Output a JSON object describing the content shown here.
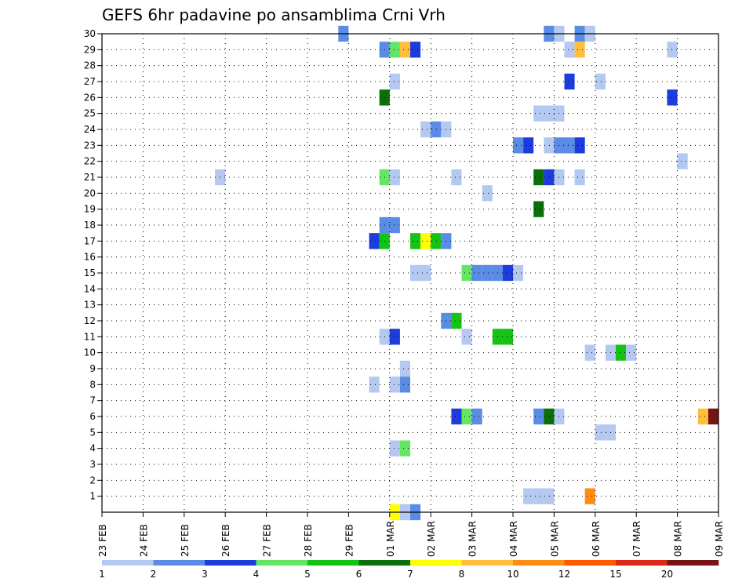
{
  "chart_data": {
    "type": "heatmap",
    "title": "GEFS 6hr padavine po ansamblima Crni Vrh",
    "xlabel": "",
    "ylabel": "",
    "x_tick_labels": [
      "23 FEB",
      "24 FEB",
      "25 FEB",
      "26 FEB",
      "27 FEB",
      "28 FEB",
      "29 FEB",
      "01 MAR",
      "02 MAR",
      "03 MAR",
      "04 MAR",
      "05 MAR",
      "06 MAR",
      "07 MAR",
      "08 MAR",
      "09 MAR"
    ],
    "y_tick_labels": [
      "1",
      "2",
      "3",
      "4",
      "5",
      "6",
      "7",
      "8",
      "9",
      "10",
      "11",
      "12",
      "13",
      "14",
      "15",
      "16",
      "17",
      "18",
      "19",
      "20",
      "21",
      "22",
      "23",
      "24",
      "25",
      "26",
      "27",
      "28",
      "29",
      "30"
    ],
    "x_range_steps": [
      0,
      60
    ],
    "y_range": [
      0,
      30
    ],
    "x_unit": "6-hour steps from 23 FEB 00Z",
    "legend": {
      "labels": [
        "1",
        "2",
        "3",
        "4",
        "5",
        "6",
        "7",
        "8",
        "10",
        "12",
        "15",
        "20"
      ],
      "colors": [
        "#b4c8f0",
        "#5a8ce6",
        "#1e3cdc",
        "#64e664",
        "#14c314",
        "#0a6e0a",
        "#ffff00",
        "#ffbe3c",
        "#ff8c14",
        "#ff5a00",
        "#dc2814",
        "#781414"
      ]
    },
    "cells": [
      {
        "member": 30,
        "step": 23.5,
        "color": "#5a8ce6"
      },
      {
        "member": 30,
        "step": 43.5,
        "color": "#5a8ce6"
      },
      {
        "member": 30,
        "step": 44.5,
        "color": "#b4c8f0"
      },
      {
        "member": 30,
        "step": 46.5,
        "color": "#5a8ce6"
      },
      {
        "member": 30,
        "step": 47.5,
        "color": "#b4c8f0"
      },
      {
        "member": 29,
        "step": 27.5,
        "color": "#5a8ce6"
      },
      {
        "member": 29,
        "step": 28.5,
        "color": "#64e664"
      },
      {
        "member": 29,
        "step": 29.5,
        "color": "#ffbe3c"
      },
      {
        "member": 29,
        "step": 30.5,
        "color": "#1e3cdc"
      },
      {
        "member": 29,
        "step": 45.5,
        "color": "#b4c8f0"
      },
      {
        "member": 29,
        "step": 46.5,
        "color": "#ffbe3c"
      },
      {
        "member": 29,
        "step": 55.5,
        "color": "#b4c8f0"
      },
      {
        "member": 27,
        "step": 28.5,
        "color": "#b4c8f0"
      },
      {
        "member": 27,
        "step": 45.5,
        "color": "#1e3cdc"
      },
      {
        "member": 27,
        "step": 48.5,
        "color": "#b4c8f0"
      },
      {
        "member": 26,
        "step": 27.5,
        "color": "#0a6e0a"
      },
      {
        "member": 26,
        "step": 55.5,
        "color": "#1e3cdc"
      },
      {
        "member": 25,
        "step": 42.5,
        "color": "#b4c8f0"
      },
      {
        "member": 25,
        "step": 43.5,
        "color": "#b4c8f0"
      },
      {
        "member": 25,
        "step": 44.5,
        "color": "#b4c8f0"
      },
      {
        "member": 24,
        "step": 31.5,
        "color": "#b4c8f0"
      },
      {
        "member": 24,
        "step": 32.5,
        "color": "#5a8ce6"
      },
      {
        "member": 24,
        "step": 33.5,
        "color": "#b4c8f0"
      },
      {
        "member": 23,
        "step": 40.5,
        "color": "#5a8ce6"
      },
      {
        "member": 23,
        "step": 41.5,
        "color": "#1e3cdc"
      },
      {
        "member": 23,
        "step": 43.5,
        "color": "#b4c8f0"
      },
      {
        "member": 23,
        "step": 44.5,
        "color": "#5a8ce6"
      },
      {
        "member": 23,
        "step": 45.5,
        "color": "#5a8ce6"
      },
      {
        "member": 23,
        "step": 46.5,
        "color": "#1e3cdc"
      },
      {
        "member": 22,
        "step": 56.5,
        "color": "#b4c8f0"
      },
      {
        "member": 21,
        "step": 11.5,
        "color": "#b4c8f0"
      },
      {
        "member": 21,
        "step": 27.5,
        "color": "#64e664"
      },
      {
        "member": 21,
        "step": 28.5,
        "color": "#b4c8f0"
      },
      {
        "member": 21,
        "step": 34.5,
        "color": "#b4c8f0"
      },
      {
        "member": 21,
        "step": 42.5,
        "color": "#0a6e0a"
      },
      {
        "member": 21,
        "step": 43.5,
        "color": "#1e3cdc"
      },
      {
        "member": 21,
        "step": 44.5,
        "color": "#b4c8f0"
      },
      {
        "member": 21,
        "step": 46.5,
        "color": "#b4c8f0"
      },
      {
        "member": 20,
        "step": 37.5,
        "color": "#b4c8f0"
      },
      {
        "member": 19,
        "step": 42.5,
        "color": "#0a6e0a"
      },
      {
        "member": 18,
        "step": 27.5,
        "color": "#5a8ce6"
      },
      {
        "member": 18,
        "step": 28.5,
        "color": "#5a8ce6"
      },
      {
        "member": 17,
        "step": 26.5,
        "color": "#1e3cdc"
      },
      {
        "member": 17,
        "step": 27.5,
        "color": "#14c314"
      },
      {
        "member": 17,
        "step": 30.5,
        "color": "#14c314"
      },
      {
        "member": 17,
        "step": 31.5,
        "color": "#ffff00"
      },
      {
        "member": 17,
        "step": 32.5,
        "color": "#14c314"
      },
      {
        "member": 17,
        "step": 33.5,
        "color": "#5a8ce6"
      },
      {
        "member": 15,
        "step": 30.5,
        "color": "#b4c8f0"
      },
      {
        "member": 15,
        "step": 31.5,
        "color": "#b4c8f0"
      },
      {
        "member": 15,
        "step": 35.5,
        "color": "#64e664"
      },
      {
        "member": 15,
        "step": 36.5,
        "color": "#5a8ce6"
      },
      {
        "member": 15,
        "step": 37.5,
        "color": "#5a8ce6"
      },
      {
        "member": 15,
        "step": 38.5,
        "color": "#5a8ce6"
      },
      {
        "member": 15,
        "step": 39.5,
        "color": "#1e3cdc"
      },
      {
        "member": 15,
        "step": 40.5,
        "color": "#b4c8f0"
      },
      {
        "member": 12,
        "step": 33.5,
        "color": "#5a8ce6"
      },
      {
        "member": 12,
        "step": 34.5,
        "color": "#14c314"
      },
      {
        "member": 11,
        "step": 27.5,
        "color": "#b4c8f0"
      },
      {
        "member": 11,
        "step": 28.5,
        "color": "#1e3cdc"
      },
      {
        "member": 11,
        "step": 35.5,
        "color": "#b4c8f0"
      },
      {
        "member": 11,
        "step": 38.5,
        "color": "#14c314"
      },
      {
        "member": 11,
        "step": 39.5,
        "color": "#14c314"
      },
      {
        "member": 10,
        "step": 47.5,
        "color": "#b4c8f0"
      },
      {
        "member": 10,
        "step": 49.5,
        "color": "#b4c8f0"
      },
      {
        "member": 10,
        "step": 50.5,
        "color": "#14c314"
      },
      {
        "member": 10,
        "step": 51.5,
        "color": "#b4c8f0"
      },
      {
        "member": 9,
        "step": 29.5,
        "color": "#b4c8f0"
      },
      {
        "member": 8,
        "step": 26.5,
        "color": "#b4c8f0"
      },
      {
        "member": 8,
        "step": 28.5,
        "color": "#b4c8f0"
      },
      {
        "member": 8,
        "step": 29.5,
        "color": "#5a8ce6"
      },
      {
        "member": 6,
        "step": 34.5,
        "color": "#1e3cdc"
      },
      {
        "member": 6,
        "step": 35.5,
        "color": "#64e664"
      },
      {
        "member": 6,
        "step": 36.5,
        "color": "#5a8ce6"
      },
      {
        "member": 6,
        "step": 42.5,
        "color": "#5a8ce6"
      },
      {
        "member": 6,
        "step": 43.5,
        "color": "#0a6e0a"
      },
      {
        "member": 6,
        "step": 44.5,
        "color": "#b4c8f0"
      },
      {
        "member": 6,
        "step": 58.5,
        "color": "#ffbe3c"
      },
      {
        "member": 6,
        "step": 59.5,
        "color": "#781414"
      },
      {
        "member": 5,
        "step": 48.5,
        "color": "#b4c8f0"
      },
      {
        "member": 5,
        "step": 49.5,
        "color": "#b4c8f0"
      },
      {
        "member": 4,
        "step": 28.5,
        "color": "#b4c8f0"
      },
      {
        "member": 4,
        "step": 29.5,
        "color": "#64e664"
      },
      {
        "member": 1,
        "step": 41.5,
        "color": "#b4c8f0"
      },
      {
        "member": 1,
        "step": 42.5,
        "color": "#b4c8f0"
      },
      {
        "member": 1,
        "step": 43.5,
        "color": "#b4c8f0"
      },
      {
        "member": 1,
        "step": 47.5,
        "color": "#ff8c14"
      },
      {
        "member": 0,
        "step": 28.5,
        "color": "#ffff00"
      },
      {
        "member": 0,
        "step": 29.5,
        "color": "#b4c8f0"
      },
      {
        "member": 0,
        "step": 30.5,
        "color": "#5a8ce6"
      }
    ]
  }
}
